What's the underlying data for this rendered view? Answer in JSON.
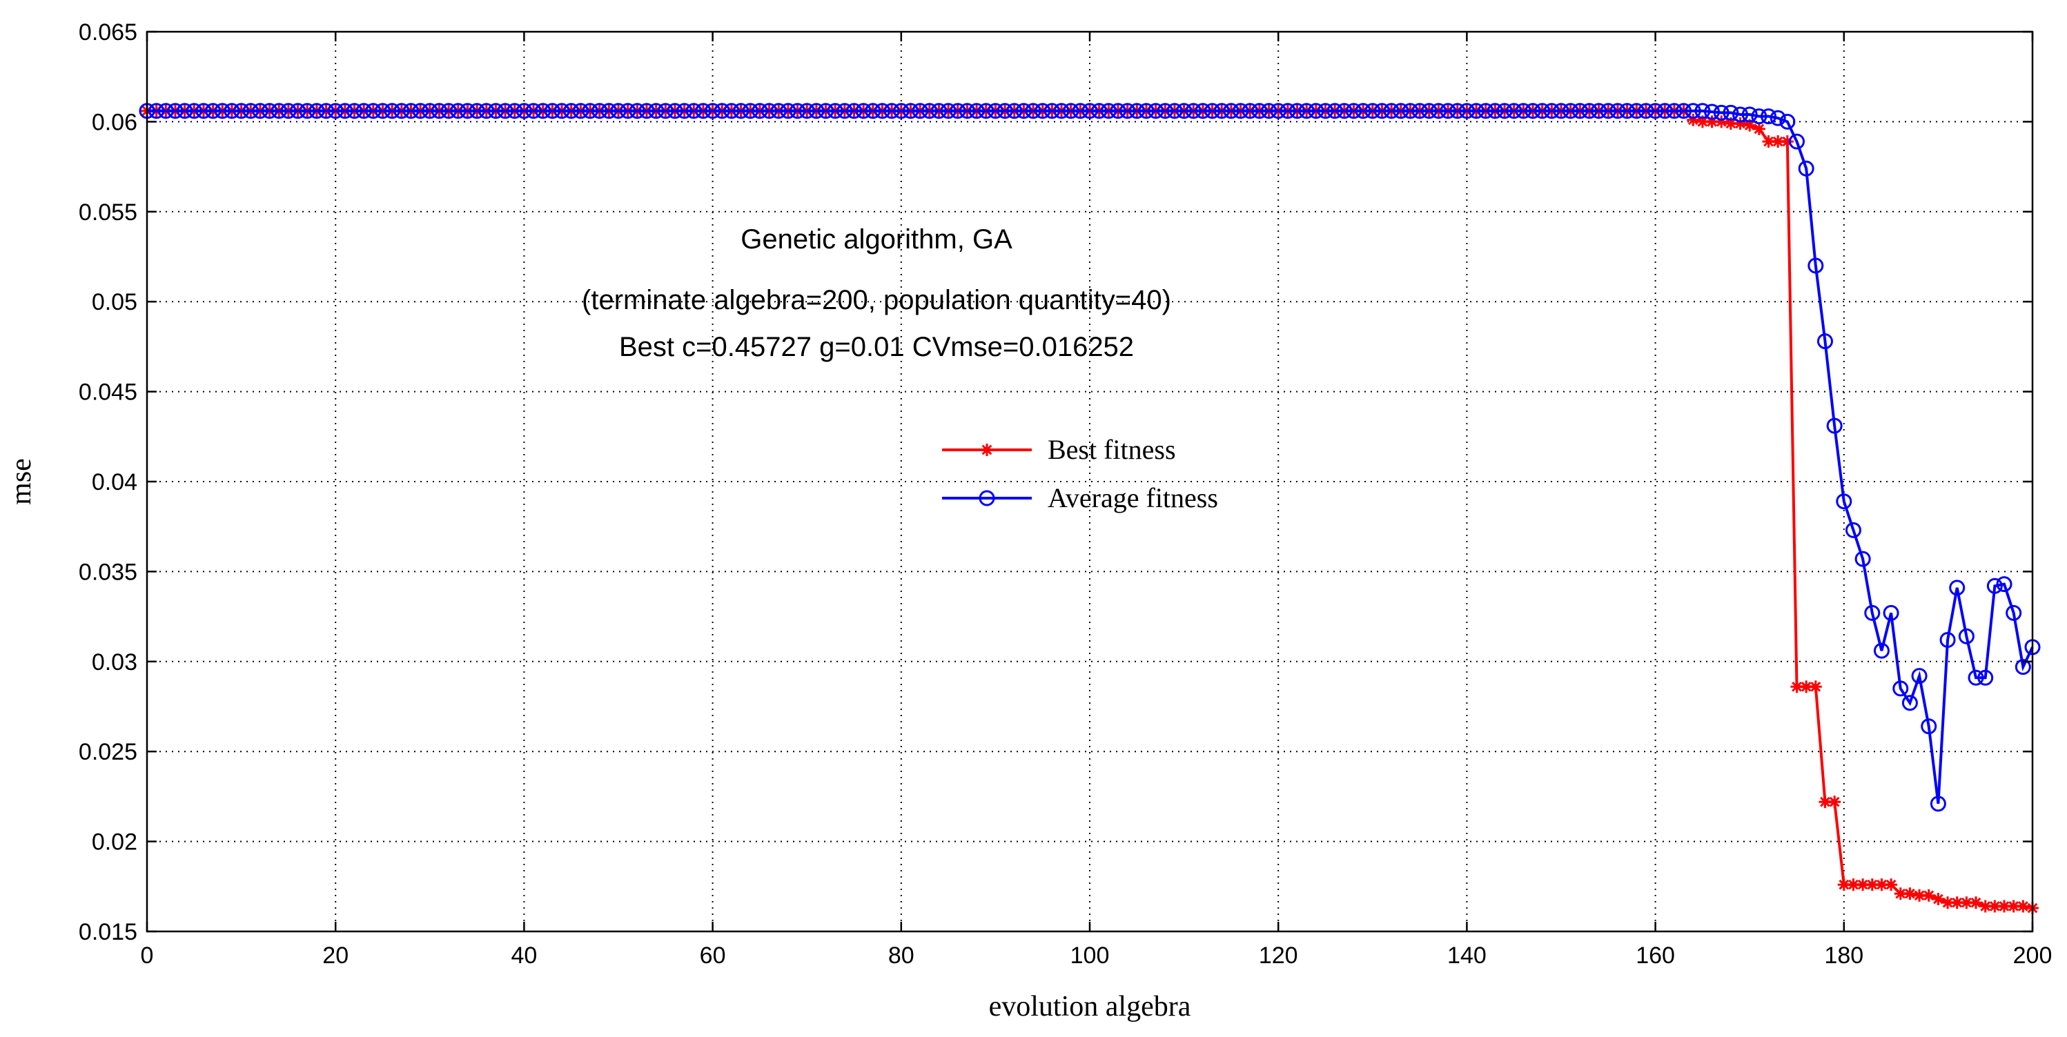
{
  "chart_data": {
    "type": "line",
    "xlabel": "evolution algebra",
    "ylabel": "mse",
    "xlim": [
      0,
      200
    ],
    "ylim": [
      0.015,
      0.065
    ],
    "x_ticks": [
      0,
      20,
      40,
      60,
      80,
      100,
      120,
      140,
      160,
      180,
      200
    ],
    "x_tick_labels": [
      "0",
      "20",
      "40",
      "60",
      "80",
      "100",
      "120",
      "140",
      "160",
      "180",
      "200"
    ],
    "y_ticks": [
      0.015,
      0.02,
      0.025,
      0.03,
      0.035,
      0.04,
      0.045,
      0.05,
      0.055,
      0.06,
      0.065
    ],
    "y_tick_labels": [
      "0.015",
      "0.02",
      "0.025",
      "0.03",
      "0.035",
      "0.04",
      "0.045",
      "0.05",
      "0.055",
      "0.06",
      "0.065"
    ],
    "grid": true,
    "legend_position": "center",
    "annotations": [
      "Genetic algorithm, GA",
      "(terminate algebra=200, population quantity=40)",
      "Best c=0.45727 g=0.01 CVmse=0.016252"
    ],
    "series": [
      {
        "name": "Best fitness",
        "color": "#ff0000",
        "marker": "star",
        "x": [
          0,
          10,
          20,
          30,
          40,
          50,
          60,
          70,
          80,
          90,
          100,
          110,
          120,
          130,
          140,
          150,
          160,
          163,
          164,
          165,
          166,
          167,
          168,
          169,
          170,
          171,
          172,
          173,
          174,
          175,
          176,
          177,
          178,
          179,
          180,
          181,
          182,
          183,
          184,
          185,
          186,
          187,
          188,
          189,
          190,
          191,
          192,
          193,
          194,
          195,
          196,
          197,
          198,
          199,
          200
        ],
        "values": [
          0.0606,
          0.0606,
          0.0606,
          0.0606,
          0.0606,
          0.0606,
          0.0606,
          0.0606,
          0.0606,
          0.0606,
          0.0606,
          0.0606,
          0.0606,
          0.0606,
          0.0606,
          0.0606,
          0.0606,
          0.0606,
          0.0601,
          0.06,
          0.06,
          0.06,
          0.0599,
          0.0599,
          0.0598,
          0.0596,
          0.0589,
          0.0589,
          0.0589,
          0.0286,
          0.0286,
          0.0286,
          0.0222,
          0.0222,
          0.0176,
          0.0176,
          0.0176,
          0.0176,
          0.0176,
          0.0176,
          0.0171,
          0.0171,
          0.017,
          0.017,
          0.0168,
          0.0166,
          0.0166,
          0.0166,
          0.0166,
          0.0164,
          0.0164,
          0.0164,
          0.0164,
          0.0164,
          0.0163
        ]
      },
      {
        "name": "Average fitness",
        "color": "#0000ff",
        "marker": "circle",
        "x": [
          0,
          10,
          20,
          30,
          40,
          50,
          60,
          70,
          80,
          90,
          100,
          110,
          120,
          130,
          140,
          150,
          160,
          165,
          167,
          168,
          169,
          170,
          171,
          172,
          173,
          174,
          175,
          176,
          177,
          178,
          179,
          180,
          181,
          182,
          183,
          184,
          185,
          186,
          187,
          188,
          189,
          190,
          191,
          192,
          193,
          194,
          195,
          196,
          197,
          198,
          199,
          200
        ],
        "values": [
          0.0606,
          0.0606,
          0.0606,
          0.0606,
          0.0606,
          0.0606,
          0.0606,
          0.0606,
          0.0606,
          0.0606,
          0.0606,
          0.0606,
          0.0606,
          0.0606,
          0.0606,
          0.0606,
          0.0606,
          0.0606,
          0.0605,
          0.0605,
          0.0604,
          0.0604,
          0.0603,
          0.0603,
          0.0602,
          0.06,
          0.0589,
          0.0574,
          0.052,
          0.0478,
          0.0431,
          0.0389,
          0.0373,
          0.0357,
          0.0327,
          0.0306,
          0.0327,
          0.0285,
          0.0277,
          0.0292,
          0.0264,
          0.0221,
          0.0312,
          0.0341,
          0.0314,
          0.0291,
          0.0291,
          0.0342,
          0.0343,
          0.0327,
          0.0297,
          0.0308
        ]
      }
    ]
  }
}
